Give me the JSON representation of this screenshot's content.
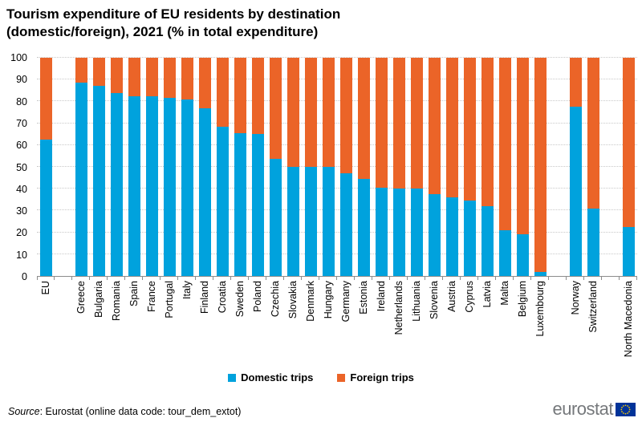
{
  "chart_data": {
    "type": "bar",
    "stacked": true,
    "title": "Tourism expenditure of EU residents by destination (domestic/foreign), 2021 (% in total expenditure)",
    "categories": [
      "EU",
      "Greece",
      "Bulgaria",
      "Romania",
      "Spain",
      "France",
      "Portugal",
      "Italy",
      "Finland",
      "Croatia",
      "Sweden",
      "Poland",
      "Czechia",
      "Slovakia",
      "Denmark",
      "Hungary",
      "Germany",
      "Estonia",
      "Ireland",
      "Netherlands",
      "Lithuania",
      "Slovenia",
      "Austria",
      "Cyprus",
      "Latvia",
      "Malta",
      "Belgium",
      "Luxembourg",
      "Norway",
      "Switzerland",
      "North Macedonia"
    ],
    "series": [
      {
        "name": "Domestic trips",
        "color": "#00a2dd",
        "values": [
          62.5,
          88.5,
          87,
          84,
          82.5,
          82.5,
          81.5,
          81,
          77,
          68.5,
          65.5,
          65,
          53.5,
          50,
          50,
          50,
          47,
          44.5,
          40.5,
          40,
          40,
          37.5,
          36,
          34.5,
          32,
          21,
          19,
          2,
          77.5,
          31,
          22.5
        ]
      },
      {
        "name": "Foreign trips",
        "color": "#eb6428",
        "values": [
          37.5,
          11.5,
          13,
          16,
          17.5,
          17.5,
          18.5,
          19,
          23,
          31.5,
          34.5,
          35,
          46.5,
          50,
          50,
          50,
          53,
          55.5,
          59.5,
          60,
          60,
          62.5,
          64,
          65.5,
          68,
          79,
          81,
          98,
          22.5,
          69,
          77.5
        ]
      }
    ],
    "gap_after_indices": [
      0,
      27,
      29
    ],
    "y_axis": {
      "ticks": [
        "0",
        "10",
        "20",
        "30",
        "40",
        "50",
        "60",
        "70",
        "80",
        "90",
        "100"
      ],
      "min": 0,
      "max": 100
    },
    "grid": "horizontal-dotted",
    "legend_position": "bottom-center",
    "xlabel": "",
    "ylabel": ""
  },
  "footer": {
    "source_label": "Source",
    "source_rest": ": Eurostat (online data code: tour_dem_extot)",
    "logo_text": "eurostat"
  }
}
